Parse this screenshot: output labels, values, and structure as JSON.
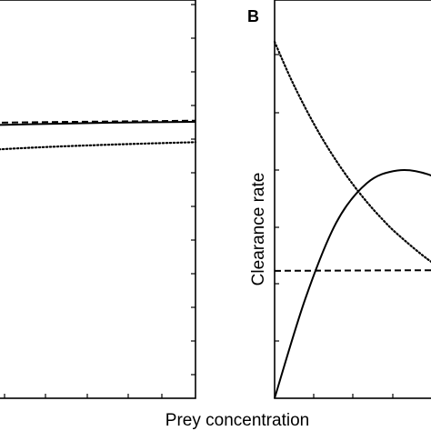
{
  "chart_data": [
    {
      "panel_label": "",
      "type": "line",
      "xlabel": "Prey concentration",
      "ylabel": "",
      "x_range": [
        0,
        1
      ],
      "y_range": [
        0,
        1
      ],
      "grid": false,
      "legend": "none",
      "series": [
        {
          "line_style": "dashed",
          "x": [
            0.0,
            0.3,
            0.6,
            1.0
          ],
          "y": [
            0.685,
            0.689,
            0.693,
            0.697
          ]
        },
        {
          "line_style": "solid",
          "x": [
            0.0,
            0.2,
            0.4,
            0.6,
            0.8,
            1.0
          ],
          "y": [
            0.654,
            0.675,
            0.683,
            0.688,
            0.692,
            0.694
          ]
        },
        {
          "line_style": "dotted",
          "x": [
            0.0,
            0.2,
            0.4,
            0.6,
            0.8,
            1.0
          ],
          "y": [
            0.575,
            0.601,
            0.617,
            0.629,
            0.637,
            0.643
          ]
        }
      ]
    },
    {
      "panel_label": "B",
      "type": "line",
      "xlabel": "Prey concentration",
      "ylabel": "Clearance rate",
      "x_range": [
        0,
        1
      ],
      "y_range": [
        0,
        1
      ],
      "grid": false,
      "legend": "none",
      "series": [
        {
          "line_style": "solid",
          "x": [
            0.0,
            0.1,
            0.2,
            0.3,
            0.4,
            0.5,
            0.6,
            0.75,
            1.0
          ],
          "y": [
            0.0,
            0.25,
            0.44,
            0.54,
            0.572,
            0.562,
            0.52,
            0.43,
            0.345
          ]
        },
        {
          "line_style": "dashed",
          "x": [
            0.0,
            0.7,
            0.73,
            0.85,
            1.0
          ],
          "y": [
            0.32,
            0.322,
            0.322,
            0.226,
            0.19
          ]
        },
        {
          "line_style": "dotted",
          "x": [
            0.0,
            0.05,
            0.1,
            0.15,
            0.2,
            0.25,
            0.3,
            0.35,
            0.4,
            0.5,
            0.6,
            0.7,
            0.8,
            0.9,
            1.0
          ],
          "y": [
            0.895,
            0.807,
            0.729,
            0.659,
            0.597,
            0.542,
            0.493,
            0.45,
            0.412,
            0.348,
            0.298,
            0.26,
            0.23,
            0.208,
            0.19
          ]
        }
      ]
    }
  ]
}
